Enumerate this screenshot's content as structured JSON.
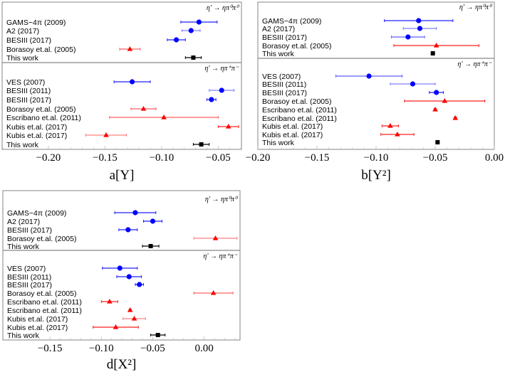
{
  "chart_data": [
    {
      "panel": "a",
      "type": "scatter",
      "xlabel": "a[Y]",
      "xlim": [
        -0.2408,
        -0.0295
      ],
      "xticks": [
        -0.2,
        -0.15,
        -0.1,
        -0.05
      ],
      "xtick_labels": [
        "−0.20",
        "−0.15",
        "−0.10",
        "−0.05"
      ],
      "groups": [
        {
          "label": "η' → ηπ⁰π⁰",
          "points": [
            {
              "label": "GAMS−4π (2009)",
              "value": -0.067,
              "error": 0.016,
              "marker": "circle",
              "color": "#0000ff",
              "err_color": "#2020ff"
            },
            {
              "label": "A2 (2017)",
              "value": -0.074,
              "error": 0.008,
              "marker": "circle",
              "color": "#0000ff",
              "err_color": "#8080ff"
            },
            {
              "label": "BESIII (2017)",
              "value": -0.087,
              "error": 0.008,
              "marker": "circle",
              "color": "#0000ff",
              "err_color": "#2020ff"
            },
            {
              "label": "Borasoy et.al. (2005)",
              "value": -0.128,
              "error": 0.009,
              "marker": "triangle",
              "color": "#ff0000",
              "err_color": "#ff6060"
            },
            {
              "label": "This work",
              "value": -0.072,
              "error": 0.007,
              "marker": "square",
              "color": "#000000",
              "err_color": "#000000"
            }
          ]
        },
        {
          "label": "η' → ηπ⁺π⁻",
          "points": [
            {
              "label": "VES (2007)",
              "value": -0.126,
              "error": 0.016,
              "marker": "circle",
              "color": "#0000ff",
              "err_color": "#2020ff"
            },
            {
              "label": "BESIII (2011)",
              "value": -0.047,
              "error": 0.011,
              "marker": "circle",
              "color": "#0000ff",
              "err_color": "#8080ff"
            },
            {
              "label": "BESIII (2017)",
              "value": -0.056,
              "error": 0.004,
              "marker": "circle",
              "color": "#0000ff",
              "err_color": "#2020ff"
            },
            {
              "label": "Borasoy et.al. (2005)",
              "value": -0.116,
              "error": 0.011,
              "marker": "triangle",
              "color": "#ff0000",
              "err_color": "#ff6060"
            },
            {
              "label": "Escribano et.al. (2011)",
              "value": -0.098,
              "error": 0.048,
              "marker": "triangle",
              "color": "#ff0000",
              "err_color": "#ff6060"
            },
            {
              "label": "Kubis et.al. (2017)",
              "value": -0.041,
              "error": 0.009,
              "marker": "triangle",
              "color": "#ff0000",
              "err_color": "#ff2020"
            },
            {
              "label": "Kubis et.al. (2017)",
              "value": -0.149,
              "error": 0.018,
              "marker": "triangle",
              "color": "#ff0000",
              "err_color": "#ff8080"
            },
            {
              "label": "This work",
              "value": -0.065,
              "error": 0.007,
              "marker": "square",
              "color": "#000000",
              "err_color": "#000000"
            }
          ]
        }
      ]
    },
    {
      "panel": "b",
      "type": "scatter",
      "xlabel": "b[Y²]",
      "xlim": [
        -0.2,
        0.0
      ],
      "xticks": [
        -0.2,
        -0.15,
        -0.1,
        -0.05,
        0.0
      ],
      "xtick_labels": [
        "−0.20",
        "−0.15",
        "−0.10",
        "−0.05",
        "0.00"
      ],
      "groups": [
        {
          "label": "η' → ηπ⁰π⁰",
          "points": [
            {
              "label": "GAMS−4π (2009)",
              "value": -0.064,
              "error": 0.029,
              "marker": "circle",
              "color": "#0000ff",
              "err_color": "#2020ff"
            },
            {
              "label": "A2 (2017)",
              "value": -0.063,
              "error": 0.014,
              "marker": "circle",
              "color": "#0000ff",
              "err_color": "#8080ff"
            },
            {
              "label": "BESIII (2017)",
              "value": -0.073,
              "error": 0.014,
              "marker": "circle",
              "color": "#0000ff",
              "err_color": "#6060ff"
            },
            {
              "label": "Borasoy et.al. (2005)",
              "value": -0.049,
              "error": 0.036,
              "marker": "triangle",
              "color": "#ff0000",
              "err_color": "#ff2020"
            },
            {
              "label": "This work",
              "value": -0.052,
              "error": 0.001,
              "marker": "square",
              "color": "#000000",
              "err_color": "#000000"
            }
          ]
        },
        {
          "label": "η' → ηπ⁺π⁻",
          "points": [
            {
              "label": "VES (2007)",
              "value": -0.106,
              "error": 0.028,
              "marker": "circle",
              "color": "#0000ff",
              "err_color": "#6060ff"
            },
            {
              "label": "BESIII (2011)",
              "value": -0.069,
              "error": 0.019,
              "marker": "circle",
              "color": "#0000ff",
              "err_color": "#8080ff"
            },
            {
              "label": "BESIII (2017)",
              "value": -0.049,
              "error": 0.006,
              "marker": "circle",
              "color": "#0000ff",
              "err_color": "#2020ff"
            },
            {
              "label": "Borasoy et.al. (2005)",
              "value": -0.042,
              "error": 0.034,
              "marker": "triangle",
              "color": "#ff0000",
              "err_color": "#ff2020"
            },
            {
              "label": "Escribano et.al. (2011)",
              "value": -0.05,
              "error": 0.001,
              "marker": "triangle",
              "color": "#ff0000",
              "err_color": "#ff2020"
            },
            {
              "label": "Escribano et.al. (2011)",
              "value": -0.033,
              "error": 0.001,
              "marker": "triangle",
              "color": "#ff0000",
              "err_color": "#ff2020"
            },
            {
              "label": "Kubis et.al. (2017)",
              "value": -0.088,
              "error": 0.007,
              "marker": "triangle",
              "color": "#ff0000",
              "err_color": "#ff2020"
            },
            {
              "label": "Kubis et.al. (2017)",
              "value": -0.082,
              "error": 0.014,
              "marker": "triangle",
              "color": "#ff0000",
              "err_color": "#ff2020"
            },
            {
              "label": "This work",
              "value": -0.048,
              "error": 0.001,
              "marker": "square",
              "color": "#000000",
              "err_color": "#000000"
            }
          ]
        }
      ]
    },
    {
      "panel": "d",
      "type": "scatter",
      "xlabel": "d[X²]",
      "xlim": [
        -0.1958,
        0.0349
      ],
      "xticks": [
        -0.15,
        -0.1,
        -0.05,
        0.0
      ],
      "xtick_labels": [
        "−0.15",
        "−0.10",
        "−0.05",
        "0.00"
      ],
      "groups": [
        {
          "label": "η' → ηπ⁰π⁰",
          "points": [
            {
              "label": "GAMS−4π (2009)",
              "value": -0.067,
              "error": 0.02,
              "marker": "circle",
              "color": "#0000ff",
              "err_color": "#2020ff"
            },
            {
              "label": "A2 (2017)",
              "value": -0.05,
              "error": 0.009,
              "marker": "circle",
              "color": "#0000ff",
              "err_color": "#2020ff"
            },
            {
              "label": "BESIII (2017)",
              "value": -0.074,
              "error": 0.009,
              "marker": "circle",
              "color": "#0000ff",
              "err_color": "#2020ff"
            },
            {
              "label": "Borasoy et.al. (2005)",
              "value": 0.011,
              "error": 0.021,
              "marker": "triangle",
              "color": "#ff0000",
              "err_color": "#ff8080"
            },
            {
              "label": "This work",
              "value": -0.052,
              "error": 0.008,
              "marker": "square",
              "color": "#000000",
              "err_color": "#000000"
            }
          ]
        },
        {
          "label": "η' → ηπ⁺π⁻",
          "points": [
            {
              "label": "VES (2007)",
              "value": -0.082,
              "error": 0.017,
              "marker": "circle",
              "color": "#0000ff",
              "err_color": "#2020ff"
            },
            {
              "label": "BESIII (2011)",
              "value": -0.073,
              "error": 0.012,
              "marker": "circle",
              "color": "#0000ff",
              "err_color": "#2020ff"
            },
            {
              "label": "BESIII (2017)",
              "value": -0.063,
              "error": 0.004,
              "marker": "circle",
              "color": "#0000ff",
              "err_color": "#2020ff"
            },
            {
              "label": "Borasoy et.al. (2005)",
              "value": 0.009,
              "error": 0.019,
              "marker": "triangle",
              "color": "#ff0000",
              "err_color": "#ff6060"
            },
            {
              "label": "Escribano et.al. (2011)",
              "value": -0.092,
              "error": 0.008,
              "marker": "triangle",
              "color": "#ff0000",
              "err_color": "#ff2020"
            },
            {
              "label": "Escribano et.al. (2011)",
              "value": -0.072,
              "error": 0.001,
              "marker": "triangle",
              "color": "#ff0000",
              "err_color": "#ff2020"
            },
            {
              "label": "Kubis et.al. (2017)",
              "value": -0.068,
              "error": 0.011,
              "marker": "triangle",
              "color": "#ff0000",
              "err_color": "#ff8080"
            },
            {
              "label": "Kubis et.al. (2017)",
              "value": -0.086,
              "error": 0.022,
              "marker": "triangle",
              "color": "#ff0000",
              "err_color": "#ff2020"
            },
            {
              "label": "This work",
              "value": -0.045,
              "error": 0.007,
              "marker": "square",
              "color": "#000000",
              "err_color": "#000000"
            }
          ]
        }
      ]
    }
  ]
}
